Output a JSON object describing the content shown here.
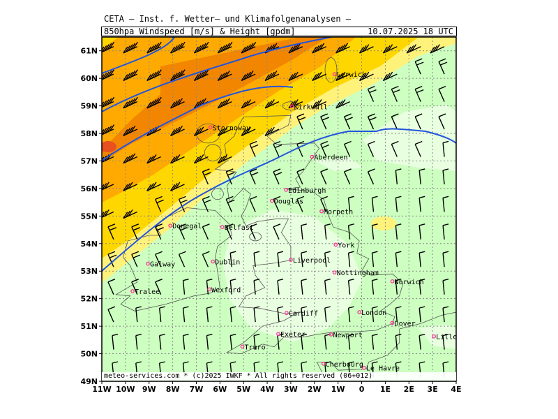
{
  "header": {
    "title": "CETA – Inst. f. Wetter– und Klimafolgenanalysen –",
    "subtitle_left": "850hpa Windspeed [m/s] & Height [gpdm]",
    "subtitle_right": "10.07.2025 18 UTC"
  },
  "footer": "meteo-services.com * (c)2025 IWKF * All rights reserved (06+012)",
  "axes": {
    "lon_labels": [
      "11W",
      "10W",
      "9W",
      "8W",
      "7W",
      "6W",
      "5W",
      "4W",
      "3W",
      "2W",
      "1W",
      "0",
      "1E",
      "2E",
      "3E",
      "4E"
    ],
    "lat_labels": [
      "61N",
      "60N",
      "59N",
      "58N",
      "57N",
      "56N",
      "55N",
      "54N",
      "53N",
      "52N",
      "51N",
      "50N",
      "49N"
    ],
    "lon_range": [
      -11,
      4
    ],
    "lat_range": [
      49,
      61.5
    ]
  },
  "legend_colors": {
    "very_strong": "#f08000",
    "strong": "#ffaa00",
    "moderate": "#ffd700",
    "light": "#fff27a",
    "weak": "#ccffc0",
    "calm": "#e8ffe0",
    "contour": "#2255dd",
    "city": "#ff3399"
  },
  "cities": [
    {
      "name": "Lerwick",
      "lon": -1.15,
      "lat": 60.15
    },
    {
      "name": "Kirkwall",
      "lon": -2.95,
      "lat": 58.98
    },
    {
      "name": "Stornoway",
      "lon": -6.4,
      "lat": 58.22
    },
    {
      "name": "Aberdeen",
      "lon": -2.1,
      "lat": 57.15
    },
    {
      "name": "Edinburgh",
      "lon": -3.2,
      "lat": 55.95
    },
    {
      "name": "Douglas",
      "lon": -3.8,
      "lat": 55.55
    },
    {
      "name": "Morpeth",
      "lon": -1.7,
      "lat": 55.17
    },
    {
      "name": "Donegal",
      "lon": -8.1,
      "lat": 54.65
    },
    {
      "name": "Belfast",
      "lon": -5.9,
      "lat": 54.6
    },
    {
      "name": "York",
      "lon": -1.1,
      "lat": 53.96
    },
    {
      "name": "Dublin",
      "lon": -6.3,
      "lat": 53.35
    },
    {
      "name": "Liverpool",
      "lon": -3.0,
      "lat": 53.41
    },
    {
      "name": "Galway",
      "lon": -9.05,
      "lat": 53.27
    },
    {
      "name": "Nottingham",
      "lon": -1.15,
      "lat": 52.95
    },
    {
      "name": "Norwich",
      "lon": 1.3,
      "lat": 52.63
    },
    {
      "name": "Tralee",
      "lon": -9.7,
      "lat": 52.27
    },
    {
      "name": "Wexford",
      "lon": -6.45,
      "lat": 52.34
    },
    {
      "name": "Cardiff",
      "lon": -3.18,
      "lat": 51.48
    },
    {
      "name": "London",
      "lon": -0.1,
      "lat": 51.51
    },
    {
      "name": "Dover",
      "lon": 1.3,
      "lat": 51.12
    },
    {
      "name": "Exeter",
      "lon": -3.53,
      "lat": 50.72
    },
    {
      "name": "Newport",
      "lon": -1.3,
      "lat": 50.7
    },
    {
      "name": "Lille",
      "lon": 3.06,
      "lat": 50.63
    },
    {
      "name": "Truro",
      "lon": -5.05,
      "lat": 50.26
    },
    {
      "name": "Le Havre",
      "lon": 0.1,
      "lat": 49.49
    },
    {
      "name": "Cherbourg",
      "lon": -1.62,
      "lat": 49.64
    }
  ]
}
